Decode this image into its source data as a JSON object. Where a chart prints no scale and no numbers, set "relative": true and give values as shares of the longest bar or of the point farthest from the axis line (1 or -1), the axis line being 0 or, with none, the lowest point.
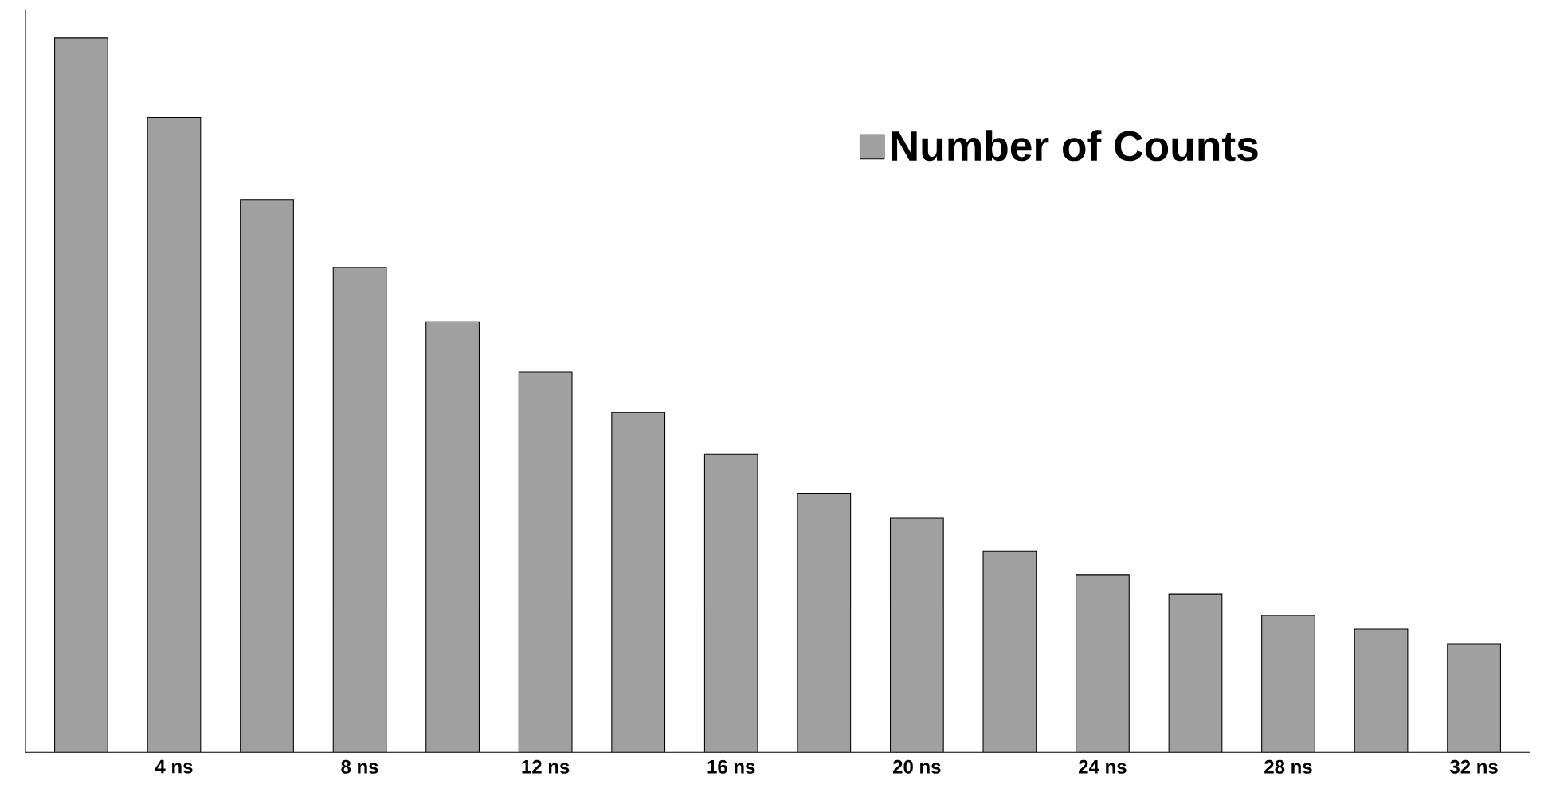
{
  "chart_data": {
    "type": "bar",
    "relative": true,
    "categories": [
      null,
      "4 ns",
      null,
      "8 ns",
      null,
      "12 ns",
      null,
      "16 ns",
      null,
      "20 ns",
      null,
      "24 ns",
      null,
      "28 ns",
      null,
      "32 ns"
    ],
    "series": [
      {
        "name": "Number of Counts",
        "color": "#a0a0a0",
        "values": [
          1,
          0.889,
          0.774,
          0.679,
          0.603,
          0.533,
          0.476,
          0.418,
          0.363,
          0.328,
          0.282,
          0.249,
          0.222,
          0.192,
          0.173,
          0.152
        ]
      }
    ],
    "legend": "top right"
  }
}
